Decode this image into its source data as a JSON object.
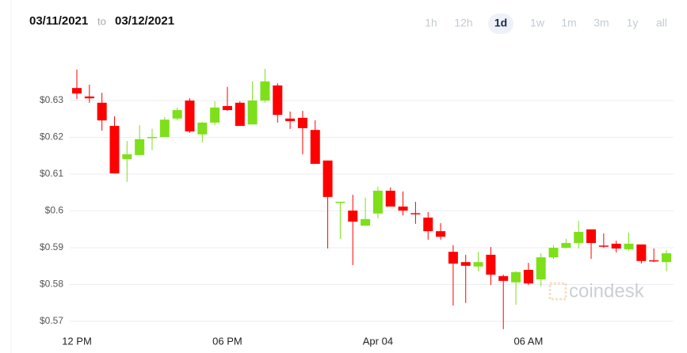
{
  "header": {
    "from": "03/11/2021",
    "separator": "to",
    "to": "03/12/2021",
    "ranges": [
      "1h",
      "12h",
      "1d",
      "1w",
      "1m",
      "3m",
      "1y",
      "all"
    ],
    "selected_range": "1d"
  },
  "chart_data": {
    "type": "candlestick",
    "watermark": "coindesk",
    "up_color": "#7ee01a",
    "down_color": "#ff0000",
    "grid": true,
    "categories": [
      "12 PM",
      null,
      null,
      null,
      null,
      null,
      null,
      null,
      null,
      null,
      null,
      null,
      "06 PM",
      null,
      null,
      null,
      null,
      null,
      null,
      null,
      null,
      null,
      null,
      null,
      "Apr 04",
      null,
      null,
      null,
      null,
      null,
      null,
      null,
      null,
      null,
      null,
      null,
      "06 AM",
      null,
      null,
      null,
      null,
      null,
      null,
      null,
      null,
      null,
      null,
      null
    ],
    "open": [
      0.6334,
      0.6311,
      0.6294,
      0.6231,
      0.6141,
      0.6152,
      0.6199,
      0.6201,
      0.6251,
      0.63,
      0.6208,
      0.624,
      0.6285,
      0.6294,
      0.6235,
      0.63,
      0.6341,
      0.6251,
      0.6253,
      0.622,
      0.6137,
      0.6024,
      0.6001,
      0.596,
      0.5993,
      0.6055,
      0.6012,
      0.5994,
      0.5982,
      0.5945,
      0.5889,
      0.5861,
      0.5849,
      0.5881,
      0.5823,
      0.5806,
      0.584,
      0.5814,
      0.5874,
      0.59,
      0.5913,
      0.595,
      0.5906,
      0.5911,
      0.5896,
      0.5909,
      0.5866,
      0.5861
    ],
    "high": [
      0.6384,
      0.6343,
      0.6321,
      0.6257,
      0.619,
      0.6233,
      0.6223,
      0.6255,
      0.6281,
      0.6306,
      0.6242,
      0.6298,
      0.6337,
      0.6298,
      0.6352,
      0.6386,
      0.6347,
      0.627,
      0.6272,
      0.6246,
      0.6137,
      0.6025,
      0.6044,
      0.6036,
      0.6066,
      0.6064,
      0.6053,
      0.6025,
      0.5997,
      0.5967,
      0.5907,
      0.5881,
      0.5889,
      0.5902,
      0.5827,
      0.5836,
      0.5859,
      0.5885,
      0.5907,
      0.5924,
      0.5973,
      0.595,
      0.5939,
      0.5919,
      0.5941,
      0.5909,
      0.5898,
      0.5894
    ],
    "low": [
      0.6304,
      0.6294,
      0.6218,
      0.6102,
      0.6079,
      0.6152,
      0.6165,
      0.6201,
      0.6246,
      0.6212,
      0.6186,
      0.6233,
      0.6272,
      0.6231,
      0.6235,
      0.6294,
      0.624,
      0.6223,
      0.6154,
      0.6128,
      0.5898,
      0.5924,
      0.5853,
      0.596,
      0.598,
      0.6012,
      0.5988,
      0.5965,
      0.5922,
      0.5922,
      0.5743,
      0.575,
      0.5836,
      0.5799,
      0.5679,
      0.5745,
      0.5799,
      0.5795,
      0.587,
      0.5898,
      0.5898,
      0.587,
      0.59,
      0.5887,
      0.5892,
      0.5857,
      0.5861,
      0.5836
    ],
    "close": [
      0.6319,
      0.6306,
      0.6246,
      0.6102,
      0.6154,
      0.6195,
      0.6201,
      0.6248,
      0.6274,
      0.6216,
      0.624,
      0.6281,
      0.6274,
      0.6231,
      0.63,
      0.6352,
      0.6261,
      0.6244,
      0.6225,
      0.6128,
      0.6038,
      0.6025,
      0.5971,
      0.5978,
      0.6055,
      0.6012,
      0.6001,
      0.5992,
      0.5945,
      0.593,
      0.5857,
      0.5851,
      0.5861,
      0.5827,
      0.581,
      0.5834,
      0.5803,
      0.5874,
      0.59,
      0.5913,
      0.5943,
      0.5913,
      0.5904,
      0.5898,
      0.5911,
      0.5864,
      0.5864,
      0.5885
    ],
    "ylim": [
      0.567,
      0.64
    ],
    "yticks": [
      {
        "value": 0.57,
        "label": "$0.57"
      },
      {
        "value": 0.58,
        "label": "$0.58"
      },
      {
        "value": 0.59,
        "label": "$0.59"
      },
      {
        "value": 0.6,
        "label": "$0.6"
      },
      {
        "value": 0.61,
        "label": "$0.61"
      },
      {
        "value": 0.62,
        "label": "$0.62"
      },
      {
        "value": 0.63,
        "label": "$0.63"
      }
    ]
  }
}
